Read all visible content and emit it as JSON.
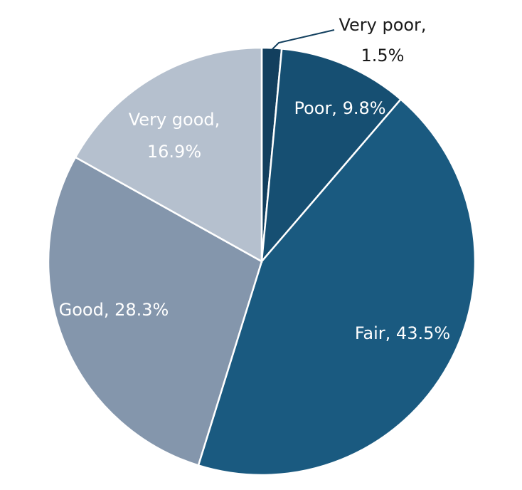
{
  "chart_data": {
    "type": "pie",
    "start": "12 o'clock",
    "direction": "clockwise",
    "slices": [
      {
        "label": "Very poor",
        "value": 1.5,
        "display": [
          "Very poor,",
          "1.5%"
        ],
        "color": "#123F5E",
        "label_color": "#1a1a1a"
      },
      {
        "label": "Poor",
        "value": 9.8,
        "display": [
          "Poor, 9.8%"
        ],
        "color": "#164F72",
        "label_color": "#ffffff"
      },
      {
        "label": "Fair",
        "value": 43.5,
        "display": [
          "Fair, 43.5%"
        ],
        "color": "#1A5A80",
        "label_color": "#ffffff"
      },
      {
        "label": "Good",
        "value": 28.3,
        "display": [
          "Good, 28.3%"
        ],
        "color": "#8496AC",
        "label_color": "#ffffff"
      },
      {
        "label": "Very good",
        "value": 16.9,
        "display": [
          "Very good,",
          "16.9%"
        ],
        "color": "#B5C0CE",
        "label_color": "#ffffff"
      }
    ]
  }
}
